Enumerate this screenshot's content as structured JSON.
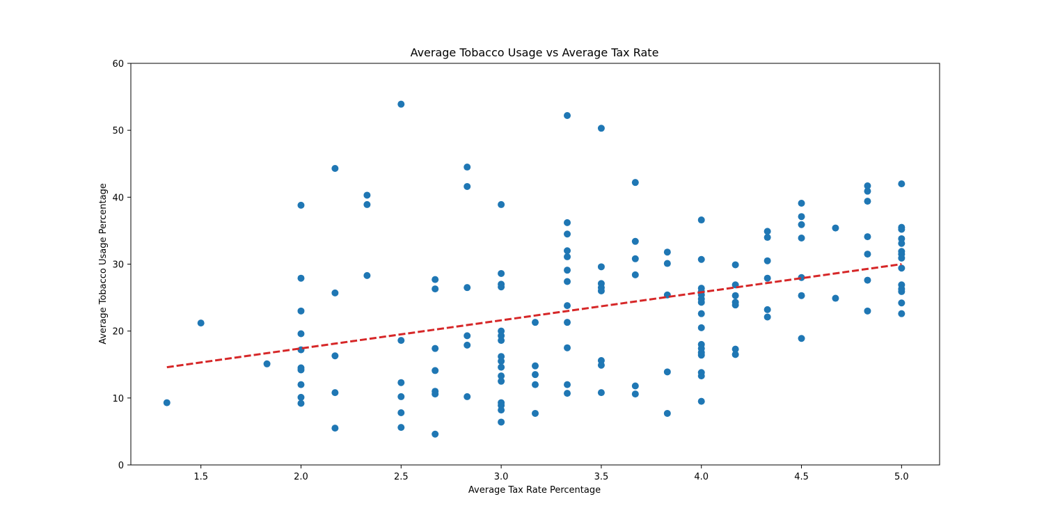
{
  "chart_data": {
    "type": "scatter",
    "title": "Average Tobacco Usage vs Average Tax Rate",
    "xlabel": "Average Tax Rate Percentage",
    "ylabel": "Average Tobacco Usage Percentage",
    "xlim": [
      1.15,
      5.19
    ],
    "ylim": [
      0,
      60
    ],
    "xticks": [
      "1.5",
      "2.0",
      "2.5",
      "3.0",
      "3.5",
      "4.0",
      "4.5",
      "5.0"
    ],
    "yticks": [
      "0",
      "10",
      "20",
      "30",
      "40",
      "50",
      "60"
    ],
    "grid": false,
    "marker_color": "#1f77b4",
    "trendline": {
      "color": "#d62728",
      "style": "dashed",
      "x": [
        1.33,
        5.0
      ],
      "y": [
        14.6,
        30.0
      ]
    },
    "points": [
      [
        1.33,
        9.3
      ],
      [
        1.5,
        21.2
      ],
      [
        1.83,
        15.1
      ],
      [
        2.0,
        38.8
      ],
      [
        2.0,
        27.9
      ],
      [
        2.0,
        23.0
      ],
      [
        2.0,
        19.6
      ],
      [
        2.0,
        17.2
      ],
      [
        2.0,
        14.5
      ],
      [
        2.0,
        14.2
      ],
      [
        2.0,
        12.0
      ],
      [
        2.0,
        10.1
      ],
      [
        2.0,
        9.2
      ],
      [
        2.17,
        44.3
      ],
      [
        2.17,
        25.7
      ],
      [
        2.17,
        16.3
      ],
      [
        2.17,
        10.8
      ],
      [
        2.17,
        5.5
      ],
      [
        2.33,
        40.3
      ],
      [
        2.33,
        38.9
      ],
      [
        2.33,
        28.3
      ],
      [
        2.5,
        53.9
      ],
      [
        2.5,
        18.6
      ],
      [
        2.5,
        12.3
      ],
      [
        2.5,
        10.2
      ],
      [
        2.5,
        7.8
      ],
      [
        2.5,
        5.6
      ],
      [
        2.67,
        27.7
      ],
      [
        2.67,
        26.3
      ],
      [
        2.67,
        17.4
      ],
      [
        2.67,
        14.1
      ],
      [
        2.67,
        11.0
      ],
      [
        2.67,
        10.6
      ],
      [
        2.67,
        4.6
      ],
      [
        2.83,
        44.5
      ],
      [
        2.83,
        41.6
      ],
      [
        2.83,
        26.5
      ],
      [
        2.83,
        19.3
      ],
      [
        2.83,
        17.9
      ],
      [
        2.83,
        10.2
      ],
      [
        3.0,
        38.9
      ],
      [
        3.0,
        28.6
      ],
      [
        3.0,
        27.0
      ],
      [
        3.0,
        26.6
      ],
      [
        3.0,
        20.0
      ],
      [
        3.0,
        19.3
      ],
      [
        3.0,
        18.6
      ],
      [
        3.0,
        16.2
      ],
      [
        3.0,
        15.5
      ],
      [
        3.0,
        14.6
      ],
      [
        3.0,
        13.3
      ],
      [
        3.0,
        12.5
      ],
      [
        3.0,
        9.3
      ],
      [
        3.0,
        8.9
      ],
      [
        3.0,
        8.2
      ],
      [
        3.0,
        6.4
      ],
      [
        3.17,
        21.3
      ],
      [
        3.17,
        14.8
      ],
      [
        3.17,
        13.5
      ],
      [
        3.17,
        12.0
      ],
      [
        3.17,
        7.7
      ],
      [
        3.33,
        52.2
      ],
      [
        3.33,
        36.2
      ],
      [
        3.33,
        34.5
      ],
      [
        3.33,
        32.0
      ],
      [
        3.33,
        31.1
      ],
      [
        3.33,
        29.1
      ],
      [
        3.33,
        27.4
      ],
      [
        3.33,
        23.8
      ],
      [
        3.33,
        21.3
      ],
      [
        3.33,
        17.5
      ],
      [
        3.33,
        12.0
      ],
      [
        3.33,
        10.7
      ],
      [
        3.5,
        50.3
      ],
      [
        3.5,
        29.6
      ],
      [
        3.5,
        27.1
      ],
      [
        3.5,
        26.5
      ],
      [
        3.5,
        26.0
      ],
      [
        3.5,
        15.6
      ],
      [
        3.5,
        14.9
      ],
      [
        3.5,
        10.8
      ],
      [
        3.67,
        42.2
      ],
      [
        3.67,
        33.4
      ],
      [
        3.67,
        30.8
      ],
      [
        3.67,
        28.4
      ],
      [
        3.67,
        11.8
      ],
      [
        3.67,
        10.6
      ],
      [
        3.83,
        31.8
      ],
      [
        3.83,
        30.1
      ],
      [
        3.83,
        25.4
      ],
      [
        3.83,
        13.9
      ],
      [
        3.83,
        7.7
      ],
      [
        4.0,
        36.6
      ],
      [
        4.0,
        30.7
      ],
      [
        4.0,
        26.4
      ],
      [
        4.0,
        25.9
      ],
      [
        4.0,
        25.4
      ],
      [
        4.0,
        24.8
      ],
      [
        4.0,
        24.3
      ],
      [
        4.0,
        22.6
      ],
      [
        4.0,
        20.5
      ],
      [
        4.0,
        18.0
      ],
      [
        4.0,
        17.4
      ],
      [
        4.0,
        16.8
      ],
      [
        4.0,
        16.4
      ],
      [
        4.0,
        13.8
      ],
      [
        4.0,
        13.3
      ],
      [
        4.0,
        9.5
      ],
      [
        4.17,
        29.9
      ],
      [
        4.17,
        26.9
      ],
      [
        4.17,
        25.3
      ],
      [
        4.17,
        24.3
      ],
      [
        4.17,
        23.9
      ],
      [
        4.17,
        17.3
      ],
      [
        4.17,
        16.5
      ],
      [
        4.33,
        34.9
      ],
      [
        4.33,
        34.0
      ],
      [
        4.33,
        30.5
      ],
      [
        4.33,
        27.9
      ],
      [
        4.33,
        23.2
      ],
      [
        4.33,
        22.1
      ],
      [
        4.5,
        39.1
      ],
      [
        4.5,
        37.1
      ],
      [
        4.5,
        35.9
      ],
      [
        4.5,
        33.9
      ],
      [
        4.5,
        28.0
      ],
      [
        4.5,
        25.3
      ],
      [
        4.5,
        18.9
      ],
      [
        4.67,
        35.4
      ],
      [
        4.67,
        24.9
      ],
      [
        4.83,
        41.7
      ],
      [
        4.83,
        40.9
      ],
      [
        4.83,
        39.4
      ],
      [
        4.83,
        34.1
      ],
      [
        4.83,
        31.5
      ],
      [
        4.83,
        27.6
      ],
      [
        4.83,
        23.0
      ],
      [
        5.0,
        42.0
      ],
      [
        5.0,
        35.5
      ],
      [
        5.0,
        35.2
      ],
      [
        5.0,
        33.8
      ],
      [
        5.0,
        33.1
      ],
      [
        5.0,
        31.9
      ],
      [
        5.0,
        31.5
      ],
      [
        5.0,
        30.9
      ],
      [
        5.0,
        29.4
      ],
      [
        5.0,
        26.9
      ],
      [
        5.0,
        26.3
      ],
      [
        5.0,
        25.9
      ],
      [
        5.0,
        24.2
      ],
      [
        5.0,
        22.6
      ]
    ]
  }
}
